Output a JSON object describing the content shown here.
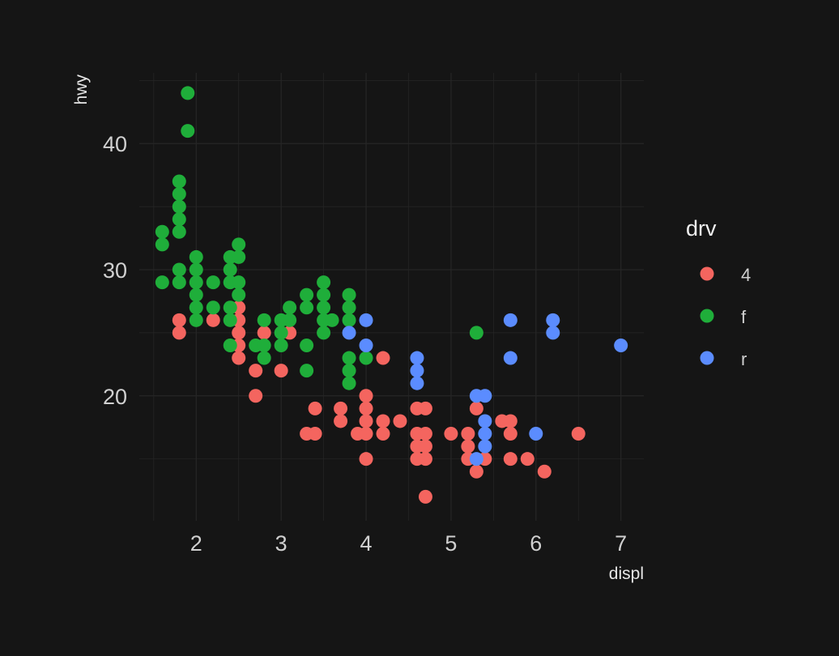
{
  "chart_data": {
    "type": "scatter",
    "xlabel": "displ",
    "ylabel": "hwy",
    "xlim": [
      1.33,
      7.27
    ],
    "ylim": [
      10.1,
      45.6
    ],
    "x_ticks": [
      2,
      3,
      4,
      5,
      6,
      7
    ],
    "y_ticks": [
      20,
      30,
      40
    ],
    "grid": true,
    "legend": {
      "title": "drv",
      "placement": "right",
      "entries": [
        "4",
        "f",
        "r"
      ]
    },
    "colors": {
      "4": "#F4655F",
      "f": "#1FAE3A",
      "r": "#5B8CFF",
      "background": "#151515",
      "grid": "#262626"
    },
    "series": [
      {
        "name": "4",
        "points": [
          [
            1.8,
            26
          ],
          [
            1.8,
            25
          ],
          [
            2.2,
            26
          ],
          [
            2.5,
            27
          ],
          [
            2.5,
            26
          ],
          [
            2.5,
            25
          ],
          [
            2.5,
            24
          ],
          [
            2.5,
            23
          ],
          [
            2.7,
            22
          ],
          [
            2.7,
            20
          ],
          [
            2.8,
            25
          ],
          [
            3.0,
            22
          ],
          [
            3.1,
            25
          ],
          [
            3.3,
            17
          ],
          [
            3.4,
            19
          ],
          [
            3.4,
            17
          ],
          [
            3.7,
            19
          ],
          [
            3.7,
            18
          ],
          [
            3.9,
            17
          ],
          [
            4.0,
            20
          ],
          [
            4.0,
            19
          ],
          [
            4.0,
            18
          ],
          [
            4.0,
            17
          ],
          [
            4.0,
            15
          ],
          [
            4.2,
            23
          ],
          [
            4.2,
            18
          ],
          [
            4.2,
            17
          ],
          [
            4.4,
            18
          ],
          [
            4.6,
            19
          ],
          [
            4.6,
            17
          ],
          [
            4.6,
            16
          ],
          [
            4.6,
            15
          ],
          [
            4.7,
            19
          ],
          [
            4.7,
            17
          ],
          [
            4.7,
            16
          ],
          [
            4.7,
            15
          ],
          [
            4.7,
            12
          ],
          [
            5.0,
            17
          ],
          [
            5.2,
            17
          ],
          [
            5.2,
            16
          ],
          [
            5.2,
            15
          ],
          [
            5.3,
            19
          ],
          [
            5.3,
            14
          ],
          [
            5.4,
            15
          ],
          [
            5.6,
            18
          ],
          [
            5.7,
            18
          ],
          [
            5.7,
            17
          ],
          [
            5.7,
            15
          ],
          [
            5.9,
            15
          ],
          [
            6.1,
            14
          ],
          [
            6.5,
            17
          ]
        ]
      },
      {
        "name": "f",
        "points": [
          [
            1.6,
            33
          ],
          [
            1.6,
            32
          ],
          [
            1.6,
            29
          ],
          [
            1.8,
            37
          ],
          [
            1.8,
            36
          ],
          [
            1.8,
            35
          ],
          [
            1.8,
            34
          ],
          [
            1.8,
            33
          ],
          [
            1.8,
            30
          ],
          [
            1.8,
            29
          ],
          [
            1.9,
            44
          ],
          [
            1.9,
            41
          ],
          [
            2.0,
            31
          ],
          [
            2.0,
            30
          ],
          [
            2.0,
            29
          ],
          [
            2.0,
            28
          ],
          [
            2.0,
            27
          ],
          [
            2.0,
            26
          ],
          [
            2.2,
            29
          ],
          [
            2.2,
            27
          ],
          [
            2.4,
            31
          ],
          [
            2.4,
            30
          ],
          [
            2.4,
            29
          ],
          [
            2.4,
            27
          ],
          [
            2.4,
            26
          ],
          [
            2.4,
            24
          ],
          [
            2.5,
            32
          ],
          [
            2.5,
            31
          ],
          [
            2.5,
            29
          ],
          [
            2.5,
            28
          ],
          [
            2.7,
            24
          ],
          [
            2.8,
            26
          ],
          [
            2.8,
            24
          ],
          [
            2.8,
            23
          ],
          [
            3.0,
            26
          ],
          [
            3.0,
            25
          ],
          [
            3.0,
            24
          ],
          [
            3.1,
            27
          ],
          [
            3.1,
            26
          ],
          [
            3.3,
            28
          ],
          [
            3.3,
            27
          ],
          [
            3.3,
            24
          ],
          [
            3.3,
            22
          ],
          [
            3.5,
            29
          ],
          [
            3.5,
            28
          ],
          [
            3.5,
            27
          ],
          [
            3.5,
            26
          ],
          [
            3.5,
            25
          ],
          [
            3.6,
            26
          ],
          [
            3.8,
            28
          ],
          [
            3.8,
            27
          ],
          [
            3.8,
            26
          ],
          [
            3.8,
            23
          ],
          [
            3.8,
            22
          ],
          [
            3.8,
            21
          ],
          [
            4.0,
            23
          ],
          [
            5.3,
            25
          ]
        ]
      },
      {
        "name": "r",
        "points": [
          [
            3.8,
            25
          ],
          [
            4.0,
            26
          ],
          [
            4.0,
            24
          ],
          [
            4.6,
            23
          ],
          [
            4.6,
            22
          ],
          [
            4.6,
            21
          ],
          [
            5.3,
            20
          ],
          [
            5.3,
            15
          ],
          [
            5.4,
            20
          ],
          [
            5.4,
            18
          ],
          [
            5.4,
            17
          ],
          [
            5.4,
            16
          ],
          [
            5.7,
            26
          ],
          [
            5.7,
            23
          ],
          [
            6.0,
            17
          ],
          [
            6.2,
            26
          ],
          [
            6.2,
            25
          ],
          [
            7.0,
            24
          ]
        ]
      }
    ]
  }
}
